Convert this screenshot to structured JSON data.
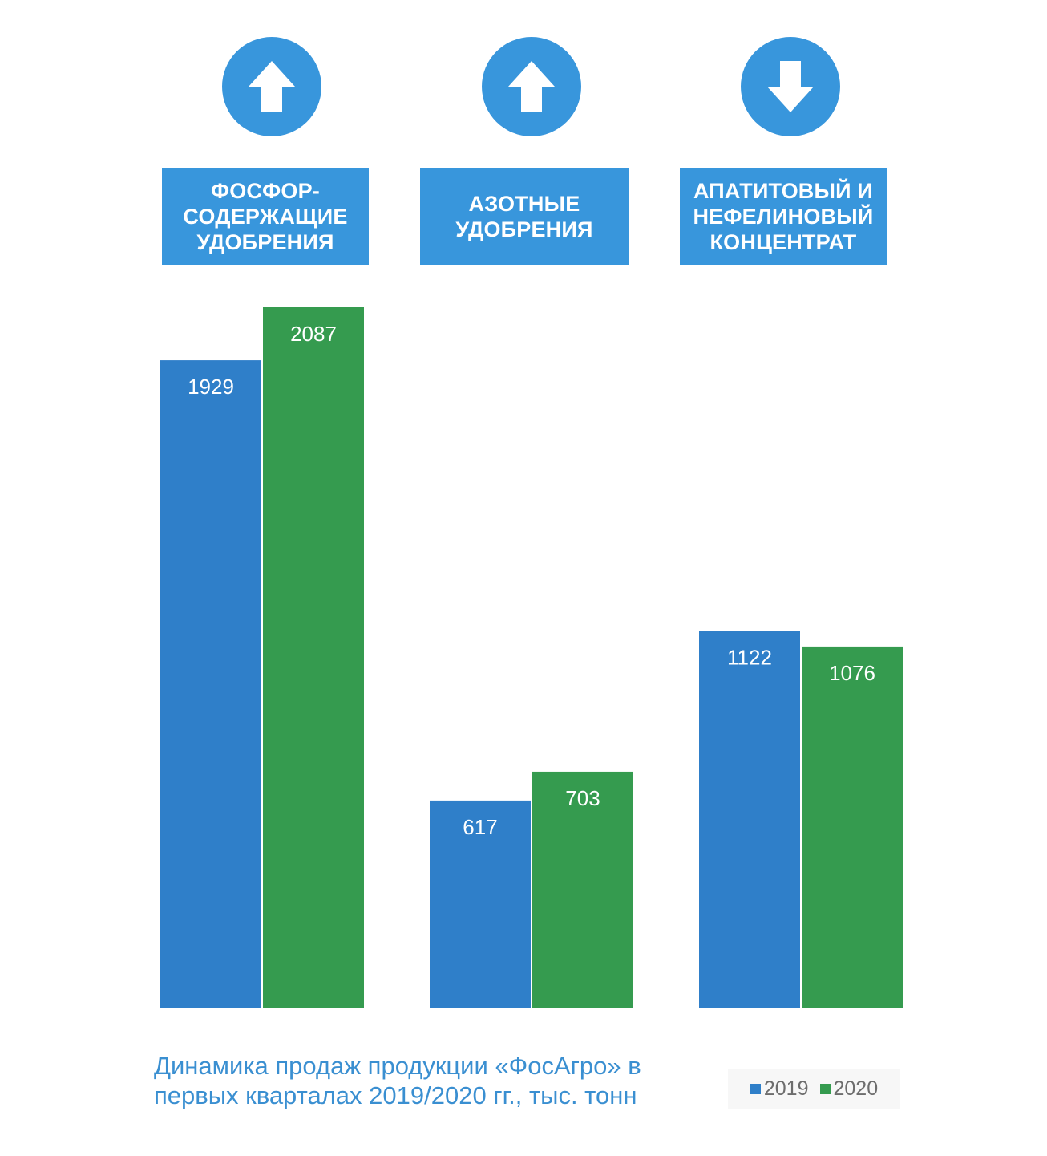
{
  "header": {
    "indicators": [
      {
        "direction": "up",
        "icon": "arrow-up-icon"
      },
      {
        "direction": "up",
        "icon": "arrow-up-icon"
      },
      {
        "direction": "down",
        "icon": "arrow-down-icon"
      }
    ],
    "categories": [
      "ФОСФОР-\nСОДЕРЖАЩИЕ\nУДОБРЕНИЯ",
      "АЗОТНЫЕ\nУДОБРЕНИЯ",
      "АПАТИТОВЫЙ И\nНЕФЕЛИНОВЫЙ\nКОНЦЕНТРАТ"
    ]
  },
  "caption": "Динамика продаж продукции «ФосАгро» в\nпервых кварталах 2019/2020 гг., тыс. тонн",
  "colors": {
    "accent": "#3896dc",
    "series_2019": "#2f7fc9",
    "series_2020": "#359b4f",
    "caption": "#3a8fd1"
  },
  "chart_data": {
    "type": "bar",
    "categories": [
      "ФОСФОР-СОДЕРЖАЩИЕ УДОБРЕНИЯ",
      "АЗОТНЫЕ УДОБРЕНИЯ",
      "АПАТИТОВЫЙ И НЕФЕЛИНОВЫЙ КОНЦЕНТРАТ"
    ],
    "series": [
      {
        "name": "2019",
        "values": [
          1929,
          617,
          1122
        ]
      },
      {
        "name": "2020",
        "values": [
          2087,
          703,
          1076
        ]
      }
    ],
    "title": "Динамика продаж продукции «ФосАгро» в первых кварталах 2019/2020 гг., тыс. тонн",
    "xlabel": "",
    "ylabel": "",
    "ylim": [
      0,
      2087
    ],
    "grid": false,
    "legend": "bottom-right",
    "data_labels": "inside-top"
  }
}
